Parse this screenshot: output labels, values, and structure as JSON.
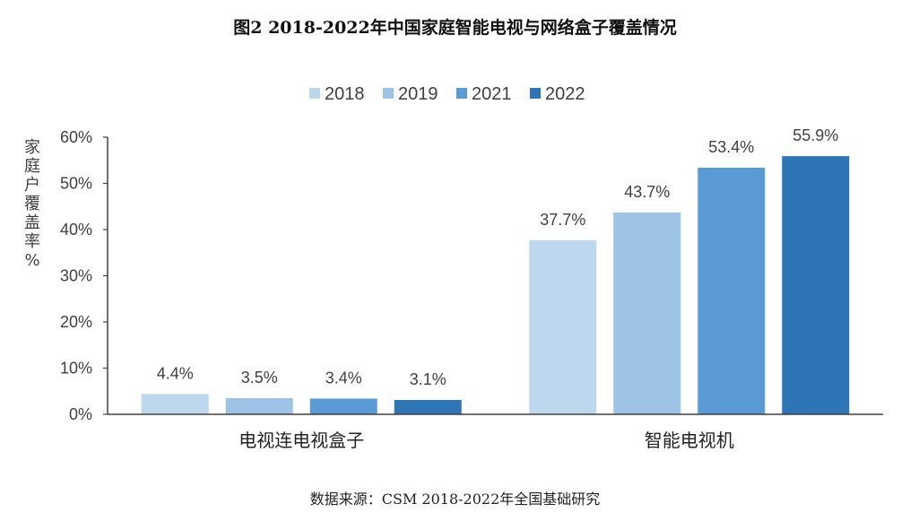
{
  "title": "图2 2018-2022年中国家庭智能电视与网络盒子覆盖情况",
  "source": "数据来源：CSM 2018-2022年全国基础研究",
  "chart_data": {
    "type": "bar",
    "title": "图2 2018-2022年中国家庭智能电视与网络盒子覆盖情况",
    "ylabel": "家庭户覆盖率%",
    "xlabel": "",
    "ylim": [
      0,
      60
    ],
    "yticks": [
      "0%",
      "10%",
      "20%",
      "30%",
      "40%",
      "50%",
      "60%"
    ],
    "grid": false,
    "legend_position": "top",
    "categories": [
      "电视连电视盒子",
      "智能电视机"
    ],
    "series": [
      {
        "name": "2018",
        "color": "#bdd7ee",
        "values": [
          4.4,
          37.7
        ],
        "labels": [
          "4.4%",
          "37.7%"
        ]
      },
      {
        "name": "2019",
        "color": "#9dc3e6",
        "values": [
          3.5,
          43.7
        ],
        "labels": [
          "3.5%",
          "43.7%"
        ]
      },
      {
        "name": "2021",
        "color": "#5b9bd5",
        "values": [
          3.4,
          53.4
        ],
        "labels": [
          "3.4%",
          "53.4%"
        ]
      },
      {
        "name": "2022",
        "color": "#2e75b6",
        "values": [
          3.1,
          55.9
        ],
        "labels": [
          "3.1%",
          "55.9%"
        ]
      }
    ]
  }
}
